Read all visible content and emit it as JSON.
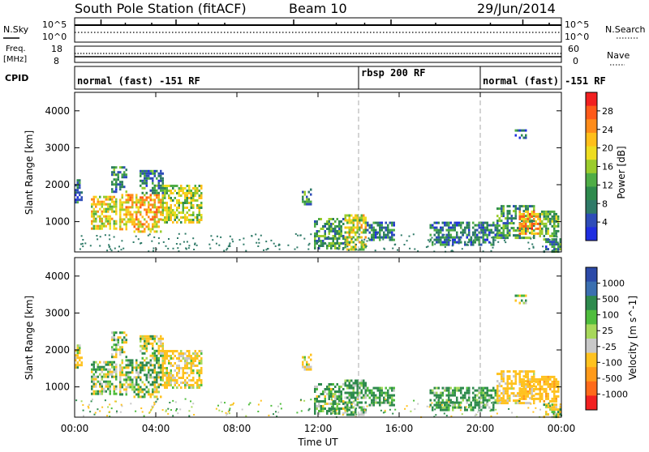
{
  "header": {
    "station": "South Pole Station (fitACF)",
    "beam": "Beam 10",
    "date": "29/Jun/2014"
  },
  "panels": {
    "nsky_label": "N.Sky",
    "nsearch_label": "N.Search",
    "nsky_tick_top": "10^5",
    "nsky_tick_bottom": "10^0",
    "freq_label": "Freq.",
    "freq_unit": "[MHz]",
    "freq_tick_top": "18",
    "freq_tick_bottom": "8",
    "nave_label": "Nave",
    "nave_tick_top": "60",
    "nave_tick_bottom": "0",
    "cpid_label": "CPID"
  },
  "cpid_segments": [
    {
      "label": "normal (fast) -151 RF",
      "start_hour": 0
    },
    {
      "label": "rbsp 200 RF",
      "start_hour": 14
    },
    {
      "label": "normal (fast) -151 RF",
      "start_hour": 20
    }
  ],
  "colorbars": {
    "power": {
      "title": "Power [dB]",
      "ticks": [
        "28",
        "24",
        "20",
        "16",
        "12",
        "8",
        "4"
      ],
      "colors": [
        "#f22020",
        "#ff5a1a",
        "#ff8c1a",
        "#ffbf1a",
        "#eedd20",
        "#9bcc2c",
        "#4fad46",
        "#2e8a4d",
        "#2f7a68",
        "#2e4cb8",
        "#1f2ee0"
      ]
    },
    "velocity": {
      "title": "Velocity [m s^-1]",
      "ticks": [
        "1000",
        "500",
        "100",
        "25",
        "-25",
        "-100",
        "-500",
        "-1000"
      ],
      "colors": [
        "#2c4aa8",
        "#3b6fb0",
        "#2e8a4d",
        "#4fbd3d",
        "#a7d85a",
        "#c8c8c8",
        "#ffc21f",
        "#ff9a1a",
        "#ff6a1a",
        "#f22020"
      ]
    }
  },
  "chart_data": [
    {
      "type": "heatmap",
      "title": "Power",
      "ylabel": "Slant Range [km]",
      "yticks": [
        "1000",
        "2000",
        "3000",
        "4000"
      ],
      "ylim": [
        180,
        4500
      ],
      "xlim_hours": [
        0,
        24
      ],
      "colorbar_label": "Power [dB]",
      "colorbar_range": [
        0,
        32
      ],
      "regions": [
        {
          "t0": 0.0,
          "t1": 0.35,
          "r0": 1550,
          "r1": 2150,
          "level": 6
        },
        {
          "t0": 0.8,
          "t1": 2.1,
          "r0": 800,
          "r1": 1700,
          "level": 20
        },
        {
          "t0": 1.8,
          "t1": 2.6,
          "r0": 1800,
          "r1": 2500,
          "level": 8
        },
        {
          "t0": 2.2,
          "t1": 4.3,
          "r0": 750,
          "r1": 1750,
          "level": 22
        },
        {
          "t0": 3.2,
          "t1": 4.4,
          "r0": 1800,
          "r1": 2400,
          "level": 8
        },
        {
          "t0": 4.3,
          "t1": 6.2,
          "r0": 950,
          "r1": 2000,
          "level": 17
        },
        {
          "t0": 11.2,
          "t1": 11.6,
          "r0": 1500,
          "r1": 1900,
          "level": 9
        },
        {
          "t0": 11.8,
          "t1": 13.3,
          "r0": 300,
          "r1": 1100,
          "level": 10
        },
        {
          "t0": 13.3,
          "t1": 14.4,
          "r0": 250,
          "r1": 1200,
          "level": 18
        },
        {
          "t0": 14.4,
          "t1": 15.8,
          "r0": 500,
          "r1": 1000,
          "level": 7
        },
        {
          "t0": 17.5,
          "t1": 20.8,
          "r0": 400,
          "r1": 1000,
          "level": 7
        },
        {
          "t0": 20.8,
          "t1": 22.7,
          "r0": 550,
          "r1": 1450,
          "level": 10
        },
        {
          "t0": 21.9,
          "t1": 23.1,
          "r0": 650,
          "r1": 1300,
          "level": 24
        },
        {
          "t0": 22.9,
          "t1": 23.9,
          "r0": 600,
          "r1": 1300,
          "level": 12
        },
        {
          "t0": 23.1,
          "t1": 24.0,
          "r0": 220,
          "r1": 550,
          "level": 8
        },
        {
          "t0": 21.7,
          "t1": 22.3,
          "r0": 3250,
          "r1": 3500,
          "level": 6
        }
      ]
    },
    {
      "type": "heatmap",
      "title": "Velocity",
      "ylabel": "Slant Range [km]",
      "yticks": [
        "1000",
        "2000",
        "3000",
        "4000"
      ],
      "ylim": [
        180,
        4500
      ],
      "xlim_hours": [
        0,
        24
      ],
      "colorbar_label": "Velocity [m s^-1]",
      "colorbar_range": [
        -1000,
        1000
      ],
      "regions": [
        {
          "t0": 0.0,
          "t1": 0.35,
          "r0": 1550,
          "r1": 2150,
          "level": -120
        },
        {
          "t0": 0.8,
          "t1": 2.1,
          "r0": 800,
          "r1": 1700,
          "level": 60
        },
        {
          "t0": 1.8,
          "t1": 2.6,
          "r0": 1800,
          "r1": 2500,
          "level": 0
        },
        {
          "t0": 2.2,
          "t1": 4.3,
          "r0": 750,
          "r1": 1750,
          "level": 40
        },
        {
          "t0": 3.2,
          "t1": 4.4,
          "r0": 1800,
          "r1": 2400,
          "level": -30
        },
        {
          "t0": 4.3,
          "t1": 6.2,
          "r0": 950,
          "r1": 2000,
          "level": -200
        },
        {
          "t0": 11.2,
          "t1": 11.6,
          "r0": 1500,
          "r1": 1900,
          "level": -200
        },
        {
          "t0": 11.8,
          "t1": 13.3,
          "r0": 300,
          "r1": 1100,
          "level": 120
        },
        {
          "t0": 13.3,
          "t1": 14.4,
          "r0": 250,
          "r1": 1200,
          "level": 150
        },
        {
          "t0": 14.4,
          "t1": 15.8,
          "r0": 500,
          "r1": 1000,
          "level": 180
        },
        {
          "t0": 17.5,
          "t1": 20.8,
          "r0": 400,
          "r1": 1000,
          "level": 200
        },
        {
          "t0": 20.8,
          "t1": 22.7,
          "r0": 550,
          "r1": 1450,
          "level": -250
        },
        {
          "t0": 21.9,
          "t1": 23.1,
          "r0": 650,
          "r1": 1300,
          "level": -300
        },
        {
          "t0": 22.9,
          "t1": 23.9,
          "r0": 600,
          "r1": 1300,
          "level": -350
        },
        {
          "t0": 23.1,
          "t1": 24.0,
          "r0": 220,
          "r1": 550,
          "level": -120
        },
        {
          "t0": 21.7,
          "t1": 22.3,
          "r0": 3250,
          "r1": 3500,
          "level": 20
        }
      ]
    }
  ],
  "xaxis": {
    "label": "Time UT",
    "ticks": [
      "00:00",
      "04:00",
      "08:00",
      "12:00",
      "16:00",
      "20:00",
      "00:00"
    ]
  }
}
